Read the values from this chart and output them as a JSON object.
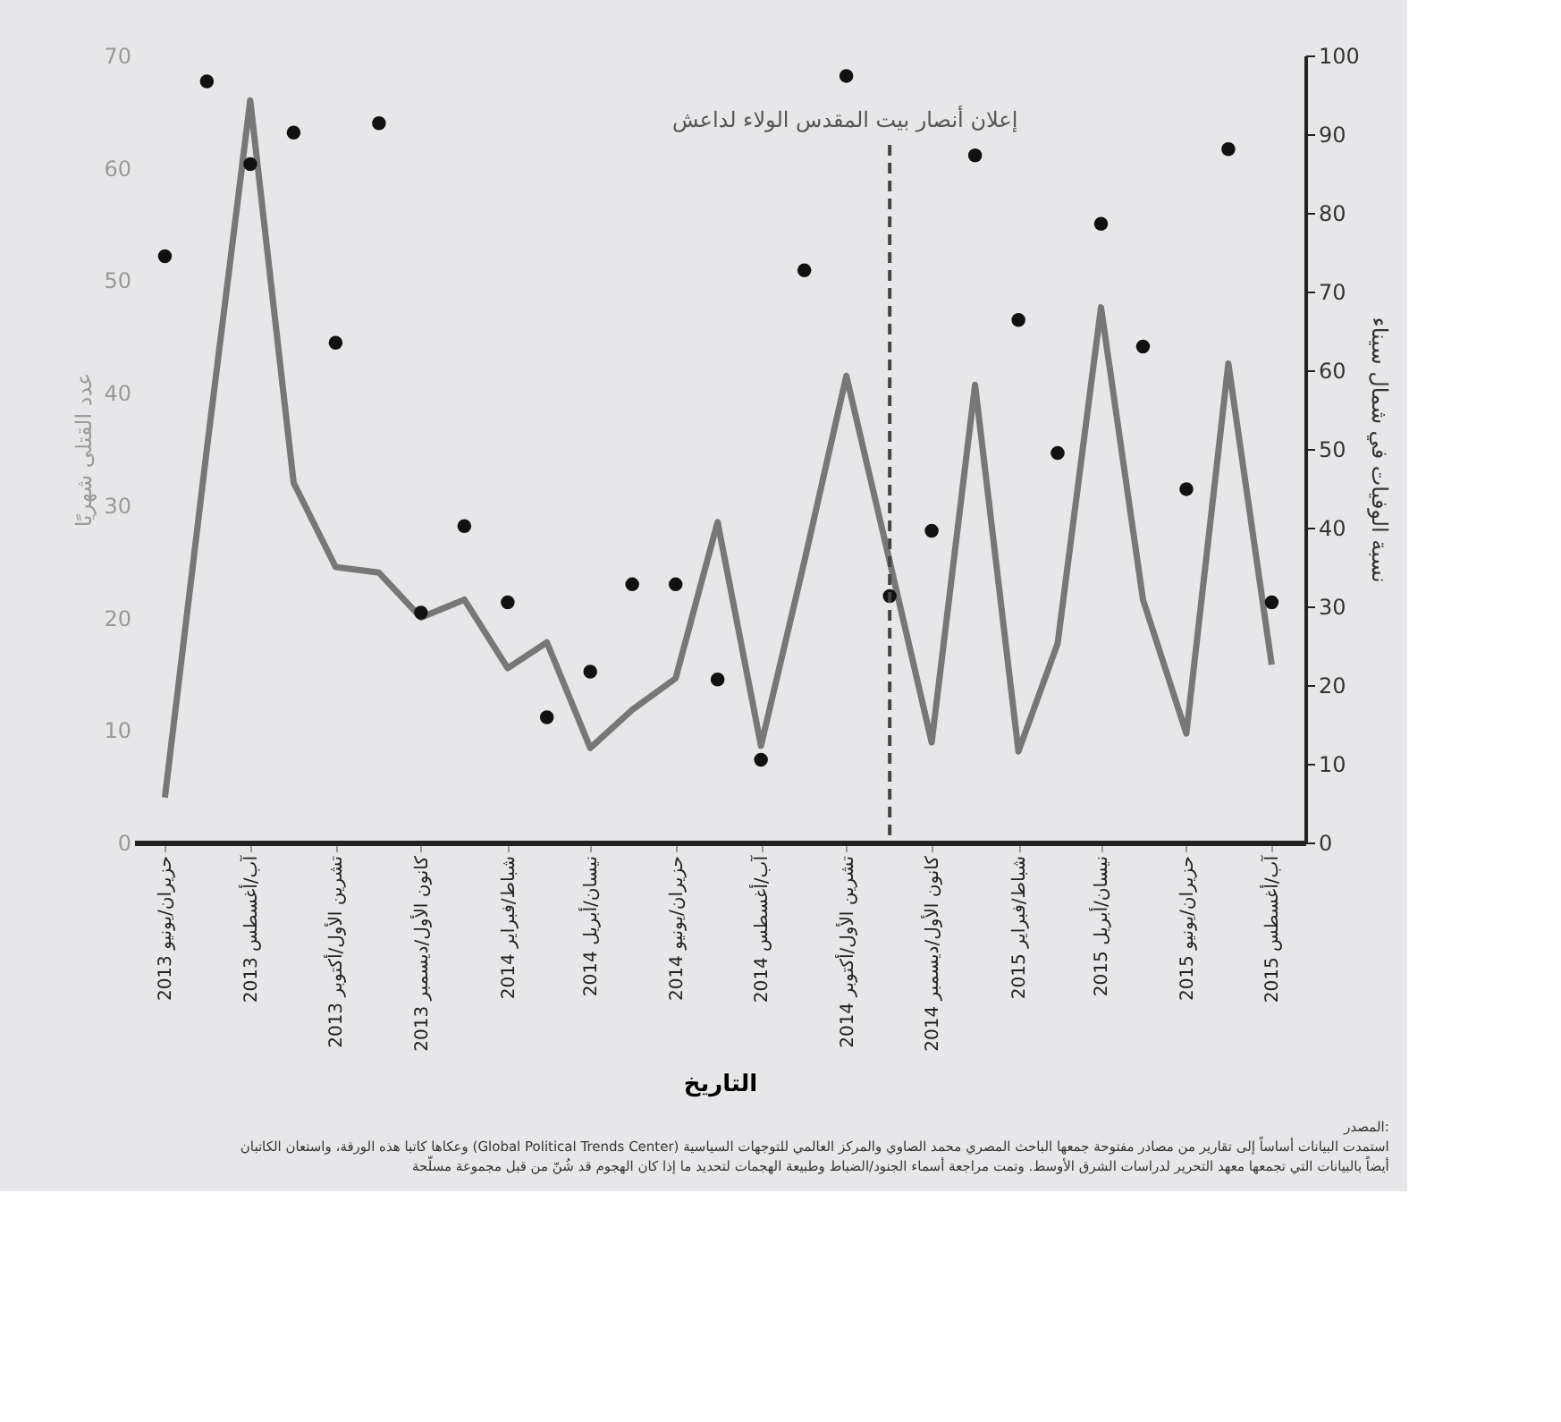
{
  "chart_data": {
    "type": "line",
    "xlabel": "التاريخ",
    "ylabel": "عدد القتلى شهريًا",
    "y2label": "نسبة الوفيات في شمال سيناء",
    "x": [
      "2013-06",
      "2013-07",
      "2013-08",
      "2013-09",
      "2013-10",
      "2013-11",
      "2013-12",
      "2014-01",
      "2014-02",
      "2014-03",
      "2014-04",
      "2014-05",
      "2014-06",
      "2014-07",
      "2014-08",
      "2014-09",
      "2014-10",
      "2014-11",
      "2014-12",
      "2015-01",
      "2015-02",
      "2015-03",
      "2015-04",
      "2015-05",
      "2015-06",
      "2015-07",
      "2015-08"
    ],
    "series": [
      {
        "color": "#777777",
        "line_style": "solid",
        "marker": "none",
        "values": [
          4,
          35,
          66,
          32,
          24.5,
          24,
          20,
          21.6,
          15.5,
          17.8,
          8.4,
          11.8,
          14.6,
          28.5,
          8.6,
          25,
          41.5,
          25,
          8.9,
          40.7,
          8.1,
          17.7,
          47.6,
          21.6,
          9.7,
          42.6,
          15.8
        ]
      },
      {
        "type": "scatter",
        "axis": "y2",
        "color": "#111111",
        "marker": "circle",
        "values": [
          74.5,
          96.7,
          86.2,
          90.2,
          63.5,
          91.4,
          29.2,
          40.2,
          30.5,
          15.9,
          21.7,
          32.8,
          32.8,
          20.7,
          10.5,
          72.7,
          97.4,
          31.3,
          39.6,
          87.3,
          66.4,
          49.5,
          78.6,
          63,
          44.9,
          88.1,
          30.5
        ]
      }
    ],
    "xlim": [
      "2013-05-10",
      "2015-08-25"
    ],
    "xticks": [
      {
        "value": "2013-06",
        "label": "حزيران/يونيو 2013"
      },
      {
        "value": "2013-08",
        "label": "آب/أغسطس 2013"
      },
      {
        "value": "2013-10",
        "label": "تشرين الأول/أكتوبر 2013"
      },
      {
        "value": "2013-12",
        "label": "كانون الأول/ديسمبر 2013"
      },
      {
        "value": "2014-02",
        "label": "شباط/فبراير 2014"
      },
      {
        "value": "2014-04",
        "label": "نيسان/أبريل 2014"
      },
      {
        "value": "2014-06",
        "label": "حزيران/يونيو 2014"
      },
      {
        "value": "2014-08",
        "label": "آب/أغسطس 2014"
      },
      {
        "value": "2014-10",
        "label": "تشرين الأول/أكتوبر 2014"
      },
      {
        "value": "2014-12",
        "label": "كانون الأول/ديسمبر 2014"
      },
      {
        "value": "2015-02",
        "label": "شباط/فبراير 2015"
      },
      {
        "value": "2015-04",
        "label": "نيسان/أبريل 2015"
      },
      {
        "value": "2015-06",
        "label": "حزيران/يونيو 2015"
      },
      {
        "value": "2015-08",
        "label": "آب/أغسطس 2015"
      }
    ],
    "ylim": [
      0,
      70
    ],
    "yticks": [
      0,
      10,
      20,
      30,
      40,
      50,
      60,
      70
    ],
    "y2lim": [
      0,
      100
    ],
    "y2ticks": [
      0,
      10,
      20,
      30,
      40,
      50,
      60,
      70,
      80,
      90,
      100
    ],
    "grid": false,
    "ref_lines": [
      {
        "axis": "x",
        "value": "2014-11",
        "label": "إعلان أنصار بيت المقدس الولاء لداعش",
        "color": "#444444",
        "line_style": "dashed"
      }
    ],
    "annotations": [
      "المصدر:",
      "وعكاها كاتبا هذه الورقة، واستعان الكاتبان (Global Political Trends Center) استمدت البيانات أساساً إلى تقارير من مصادر مفتوحة جمعها الباحث المصري محمد الصاوي والمركز العالمي للتوجهات السياسية",
      "أيضاً بالبيانات التي تجمعها معهد التحرير لدراسات الشرق الأوسط. وتمت مراجعة أسماء الجنود/الضباط وطبيعة الهجمات لتحديد ما إذا كان الهجوم قد شُنّ من قبل مجموعة مسلّحة"
    ]
  }
}
